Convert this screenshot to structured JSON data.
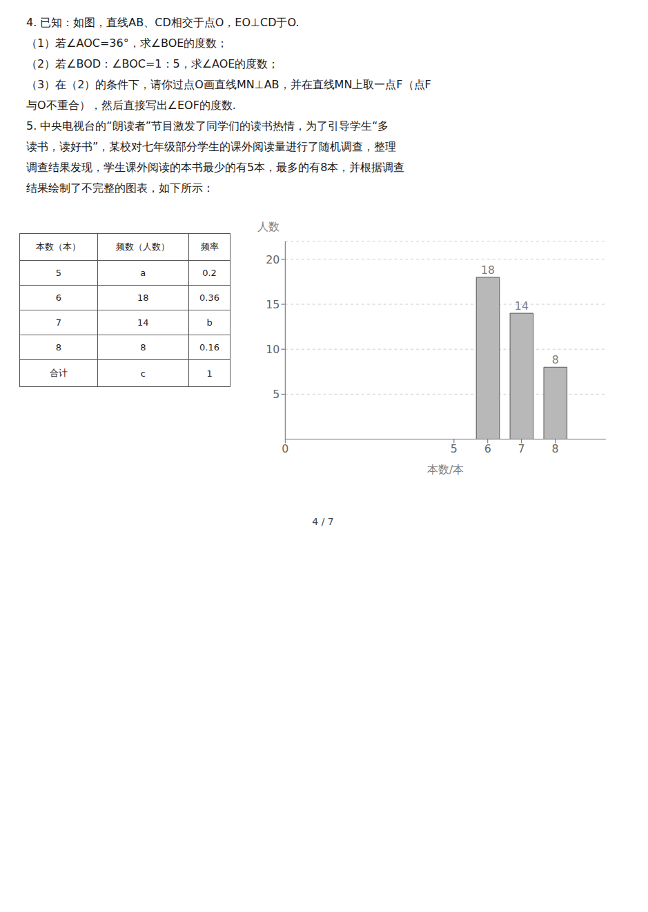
{
  "chart_data": {
    "type": "bar",
    "x": [
      6,
      7,
      8
    ],
    "values": [
      18,
      14,
      8
    ],
    "color": "#b8b8b8",
    "xlim": [
      0,
      9.5
    ],
    "xticks": [
      0,
      5,
      6,
      7,
      8
    ],
    "ylim": [
      0,
      22
    ],
    "yticks": [
      5,
      10,
      15,
      20
    ],
    "xlabel": "本数/本",
    "ylabel": "人数",
    "data_labels": true,
    "grid": true,
    "annotations": [
      "4. 已知：如图，直线AB、CD相交于点O，EO⊥CD于O.",
      "（1）若∠AOC=36°，求∠BOE的度数；",
      "（2）若∠BOD：∠BOC=1：5，求∠AOE的度数；",
      "（3）在（2）的条件下，请你过点O画直线MN⊥AB，并在直线MN上取一点F（点F",
      "与O不重合），然后直接写出∠EOF的度数.",
      "5. 中央电视台的“朗读者”节目激发了同学们的读书热情，为了引导学生“多",
      "读书，读好书”，某校对七年级部分学生的课外阅读量进行了随机调查，整理",
      "调查结果发现，学生课外阅读的本书最少的有5本，最多的有8本，并根据调查",
      "结果绘制了不完整的图表，如下所示：",
      "4 / 7"
    ]
  },
  "table": {
    "col_headers": [
      "本数（本）",
      "频数（人数）",
      "频率"
    ],
    "rows": [
      [
        "5",
        "a",
        "0.2"
      ],
      [
        "6",
        "18",
        "0.36"
      ],
      [
        "7",
        "14",
        "b"
      ],
      [
        "8",
        "8",
        "0.16"
      ],
      [
        "合计",
        "c",
        "1"
      ]
    ]
  }
}
